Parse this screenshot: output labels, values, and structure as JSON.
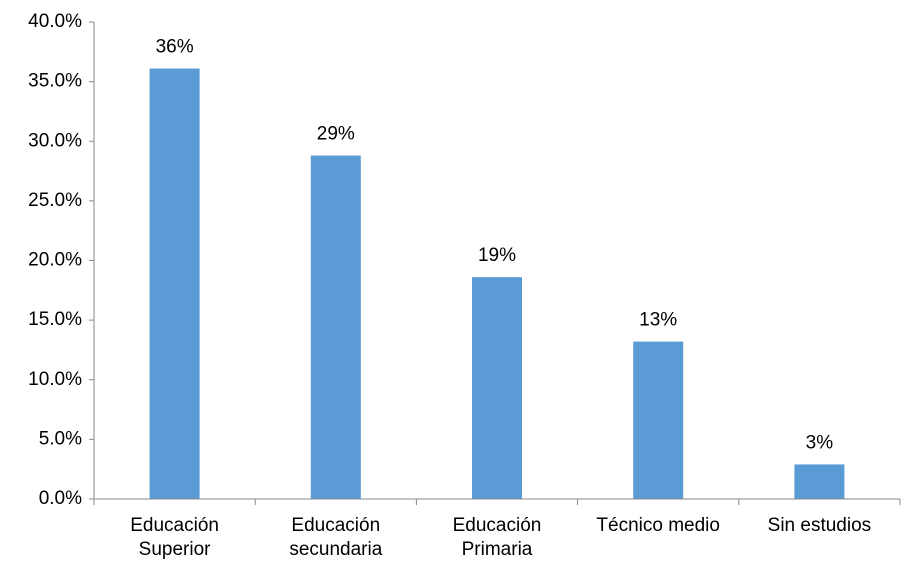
{
  "chart_data": {
    "type": "bar",
    "categories": [
      "Educación\nSuperior",
      "Educación\nsecundaria",
      "Educación\nPrimaria",
      "Técnico medio",
      "Sin estudios"
    ],
    "values": [
      36.1,
      28.8,
      18.6,
      13.2,
      2.9
    ],
    "value_labels": [
      "36%",
      "29%",
      "19%",
      "13%",
      "3%"
    ],
    "color": "#5b9bd5",
    "ylim": [
      0,
      40
    ],
    "yticks": [
      {
        "value": 0,
        "label": "0.0%"
      },
      {
        "value": 5,
        "label": "5.0%"
      },
      {
        "value": 10,
        "label": "10.0%"
      },
      {
        "value": 15,
        "label": "15.0%"
      },
      {
        "value": 20,
        "label": "20.0%"
      },
      {
        "value": 25,
        "label": "25.0%"
      },
      {
        "value": 30,
        "label": "30.0%"
      },
      {
        "value": 35,
        "label": "35.0%"
      },
      {
        "value": 40,
        "label": "40.0%"
      }
    ],
    "grid": false
  }
}
